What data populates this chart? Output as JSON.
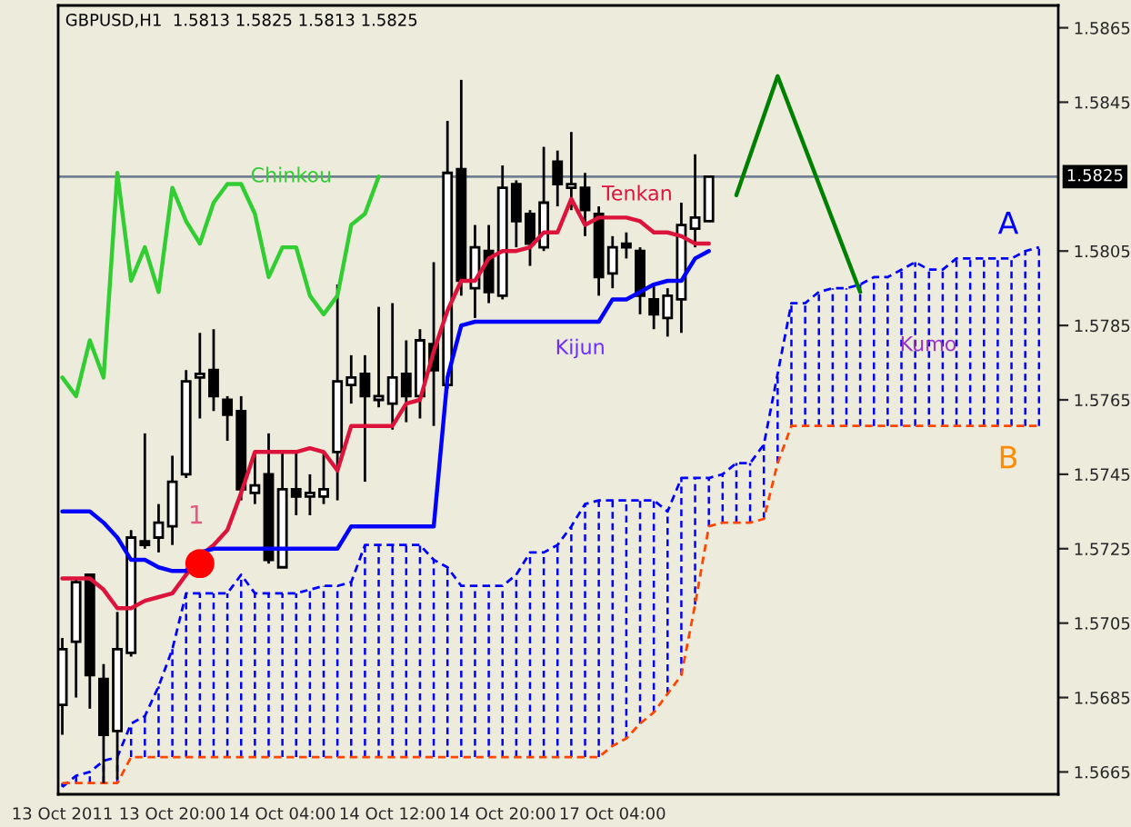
{
  "chart_data": {
    "type": "candlestick",
    "title": "GBPUSD,H1  1.5813 1.5825 1.5813 1.5825",
    "categories": [
      "13 Oct 2011",
      null,
      null,
      null,
      null,
      null,
      null,
      null,
      "13 Oct 20:00",
      null,
      null,
      null,
      null,
      null,
      null,
      null,
      "14 Oct 04:00",
      null,
      null,
      null,
      null,
      null,
      null,
      null,
      "14 Oct 12:00",
      null,
      null,
      null,
      null,
      null,
      null,
      null,
      "14 Oct 20:00",
      null,
      null,
      null,
      null,
      null,
      null,
      null,
      "17 Oct 04:00",
      null,
      null,
      null,
      null,
      null,
      null,
      null,
      null,
      null,
      null,
      null,
      null,
      null,
      null,
      null,
      null,
      null,
      null,
      null,
      null,
      null,
      null,
      null,
      null,
      null,
      null,
      null,
      null,
      null,
      null,
      null
    ],
    "ohlc": [
      [
        1.5683,
        1.5701,
        1.5675,
        1.5698
      ],
      [
        1.57,
        1.5717,
        1.5685,
        1.5716
      ],
      [
        1.5718,
        1.5718,
        1.5682,
        1.5691
      ],
      [
        1.569,
        1.5694,
        1.5662,
        1.5675
      ],
      [
        1.5676,
        1.5708,
        1.5663,
        1.5698
      ],
      [
        1.5697,
        1.573,
        1.5696,
        1.5728
      ],
      [
        1.5727,
        1.5756,
        1.5725,
        1.5726
      ],
      [
        1.5728,
        1.5737,
        1.5724,
        1.5732
      ],
      [
        1.5731,
        1.575,
        1.5726,
        1.5743
      ],
      [
        1.5745,
        1.5773,
        1.5744,
        1.577
      ],
      [
        1.5771,
        1.5783,
        1.576,
        1.5772
      ],
      [
        1.5773,
        1.5784,
        1.5762,
        1.5766
      ],
      [
        1.5765,
        1.5766,
        1.5754,
        1.5761
      ],
      [
        1.5762,
        1.5766,
        1.5738,
        1.5741
      ],
      [
        1.574,
        1.5751,
        1.5737,
        1.5742
      ],
      [
        1.5745,
        1.5756,
        1.5721,
        1.5722
      ],
      [
        1.572,
        1.5751,
        1.572,
        1.5741
      ],
      [
        1.5741,
        1.5751,
        1.5734,
        1.5739
      ],
      [
        1.5739,
        1.5745,
        1.5734,
        1.574
      ],
      [
        1.5739,
        1.5751,
        1.5737,
        1.5741
      ],
      [
        1.5751,
        1.5796,
        1.5738,
        1.577
      ],
      [
        1.5769,
        1.5777,
        1.5764,
        1.5771
      ],
      [
        1.5772,
        1.5777,
        1.5743,
        1.5766
      ],
      [
        1.5765,
        1.579,
        1.5763,
        1.5766
      ],
      [
        1.5764,
        1.5791,
        1.5757,
        1.5771
      ],
      [
        1.5772,
        1.5781,
        1.5759,
        1.5766
      ],
      [
        1.5766,
        1.5784,
        1.576,
        1.5781
      ],
      [
        1.578,
        1.5802,
        1.5758,
        1.5773
      ],
      [
        1.5769,
        1.584,
        1.5768,
        1.5826
      ],
      [
        1.5827,
        1.5851,
        1.5793,
        1.5797
      ],
      [
        1.5795,
        1.5812,
        1.5787,
        1.5806
      ],
      [
        1.5805,
        1.5812,
        1.5791,
        1.5794
      ],
      [
        1.5793,
        1.5828,
        1.5792,
        1.5822
      ],
      [
        1.5823,
        1.5824,
        1.5806,
        1.5813
      ],
      [
        1.5815,
        1.5816,
        1.5801,
        1.5807
      ],
      [
        1.5806,
        1.5833,
        1.5805,
        1.5818
      ],
      [
        1.5829,
        1.5832,
        1.5817,
        1.5823
      ],
      [
        1.5822,
        1.5837,
        1.5816,
        1.5823
      ],
      [
        1.5822,
        1.5826,
        1.5809,
        1.5816
      ],
      [
        1.5815,
        1.5817,
        1.5793,
        1.5798
      ],
      [
        1.5799,
        1.5809,
        1.5795,
        1.5806
      ],
      [
        1.5807,
        1.581,
        1.5803,
        1.5806
      ],
      [
        1.5805,
        1.5806,
        1.5788,
        1.5793
      ],
      [
        1.5792,
        1.5796,
        1.5784,
        1.5788
      ],
      [
        1.5787,
        1.5795,
        1.5782,
        1.5793
      ],
      [
        1.5792,
        1.5818,
        1.5783,
        1.5812
      ],
      [
        1.5811,
        1.5831,
        1.5806,
        1.5814
      ],
      [
        1.5813,
        1.5825,
        1.5813,
        1.5825
      ],
      null,
      null,
      null,
      null,
      null,
      null,
      null,
      null,
      null,
      null,
      null,
      null,
      null,
      null,
      null,
      null,
      null,
      null,
      null,
      null,
      null,
      null,
      null,
      null
    ],
    "series": [
      {
        "name": "Chinkou",
        "type": "line",
        "color": "#32cd32",
        "values": [
          1.5771,
          1.5766,
          1.5781,
          1.5771,
          1.5826,
          1.5797,
          1.5806,
          1.5794,
          1.5822,
          1.5813,
          1.5807,
          1.5818,
          1.5823,
          1.5823,
          1.5815,
          1.5798,
          1.5806,
          1.5806,
          1.5793,
          1.5788,
          1.5793,
          1.5812,
          1.5815,
          1.5825,
          null,
          null,
          null,
          null,
          null,
          null,
          null,
          null,
          null,
          null,
          null,
          null,
          null,
          null,
          null,
          null,
          null,
          null,
          null,
          null,
          null,
          null,
          null,
          null,
          null,
          null,
          null,
          null,
          null,
          null,
          null,
          null,
          null,
          null,
          null,
          null,
          null,
          null,
          null,
          null,
          null,
          null,
          null,
          null,
          null,
          null,
          null,
          null
        ]
      },
      {
        "name": "Tenkan",
        "type": "line",
        "color": "#dc143c",
        "values": [
          1.5717,
          1.5717,
          1.5717,
          1.5714,
          1.5709,
          1.5709,
          1.5711,
          1.5712,
          1.5713,
          1.5718,
          1.5723,
          1.5726,
          1.573,
          1.574,
          1.5751,
          1.5751,
          1.5751,
          1.5751,
          1.5752,
          1.5751,
          1.5746,
          1.5758,
          1.5758,
          1.5758,
          1.5758,
          1.5764,
          1.5765,
          1.5778,
          1.5789,
          1.5797,
          1.5797,
          1.5803,
          1.5805,
          1.5805,
          1.5806,
          1.581,
          1.581,
          1.5819,
          1.5812,
          1.5814,
          1.5814,
          1.5814,
          1.5813,
          1.581,
          1.581,
          1.5809,
          1.5807,
          1.5807,
          null,
          null,
          null,
          null,
          null,
          null,
          null,
          null,
          null,
          null,
          null,
          null,
          null,
          null,
          null,
          null,
          null,
          null,
          null,
          null,
          null,
          null,
          null,
          null
        ]
      },
      {
        "name": "Kijun",
        "type": "line",
        "color": "#0000ff",
        "values": [
          1.5735,
          1.5735,
          1.5735,
          1.5732,
          1.5728,
          1.5722,
          1.5722,
          1.572,
          1.5719,
          1.5719,
          1.5724,
          1.5725,
          1.5725,
          1.5725,
          1.5725,
          1.5725,
          1.5725,
          1.5725,
          1.5725,
          1.5725,
          1.5725,
          1.5731,
          1.5731,
          1.5731,
          1.5731,
          1.5731,
          1.5731,
          1.5731,
          1.5771,
          1.5785,
          1.5786,
          1.5786,
          1.5786,
          1.5786,
          1.5786,
          1.5786,
          1.5786,
          1.5786,
          1.5786,
          1.5786,
          1.5792,
          1.5792,
          1.5794,
          1.5796,
          1.5797,
          1.5797,
          1.5803,
          1.5805,
          null,
          null,
          null,
          null,
          null,
          null,
          null,
          null,
          null,
          null,
          null,
          null,
          null,
          null,
          null,
          null,
          null,
          null,
          null,
          null,
          null,
          null,
          null,
          null
        ]
      },
      {
        "name": "A",
        "type": "line",
        "line_style": "dashed",
        "color": "#0000ff",
        "values": [
          1.5661,
          1.5664,
          1.5665,
          1.5668,
          1.5669,
          1.5678,
          1.568,
          1.5688,
          1.5698,
          1.5713,
          1.5713,
          1.5713,
          1.5713,
          1.5718,
          1.5713,
          1.5713,
          1.5713,
          1.5713,
          1.5714,
          1.5715,
          1.5715,
          1.5716,
          1.5726,
          1.5726,
          1.5726,
          1.5726,
          1.5726,
          1.5722,
          1.572,
          1.5715,
          1.5715,
          1.5715,
          1.5715,
          1.5718,
          1.5724,
          1.5724,
          1.5726,
          1.5731,
          1.5737,
          1.5738,
          1.5738,
          1.5738,
          1.5738,
          1.5738,
          1.5735,
          1.5744,
          1.5744,
          1.5744,
          1.5745,
          1.5748,
          1.5748,
          1.5753,
          1.5772,
          1.5791,
          1.5791,
          1.5794,
          1.5795,
          1.5795,
          1.5796,
          1.5798,
          1.5798,
          1.58,
          1.5802,
          1.58,
          1.58,
          1.5803,
          1.5803,
          1.5803,
          1.5803,
          1.5803,
          1.5805,
          1.5806
        ]
      },
      {
        "name": "B",
        "type": "line",
        "line_style": "dashed",
        "color": "#ff4500",
        "values": [
          1.5662,
          1.5662,
          1.5662,
          1.5662,
          1.5662,
          1.5669,
          1.5669,
          1.5669,
          1.5669,
          1.5669,
          1.5669,
          1.5669,
          1.5669,
          1.5669,
          1.5669,
          1.5669,
          1.5669,
          1.5669,
          1.5669,
          1.5669,
          1.5669,
          1.5669,
          1.5669,
          1.5669,
          1.5669,
          1.5669,
          1.5669,
          1.5669,
          1.5669,
          1.5669,
          1.5669,
          1.5669,
          1.5669,
          1.5669,
          1.5669,
          1.5669,
          1.5669,
          1.5669,
          1.5669,
          1.5669,
          1.5672,
          1.5674,
          1.5678,
          1.5681,
          1.5686,
          1.5691,
          1.571,
          1.5731,
          1.5732,
          1.5732,
          1.5732,
          1.5733,
          1.5748,
          1.5758,
          1.5758,
          1.5758,
          1.5758,
          1.5758,
          1.5758,
          1.5758,
          1.5758,
          1.5758,
          1.5758,
          1.5758,
          1.5758,
          1.5758,
          1.5758,
          1.5758,
          1.5758,
          1.5758,
          1.5758,
          1.5758
        ]
      },
      {
        "type": "line",
        "color": "#008000",
        "values": [
          null,
          null,
          null,
          null,
          null,
          null,
          null,
          null,
          null,
          null,
          null,
          null,
          null,
          null,
          null,
          null,
          null,
          null,
          null,
          null,
          null,
          null,
          null,
          null,
          null,
          null,
          null,
          null,
          null,
          null,
          null,
          null,
          null,
          null,
          null,
          null,
          null,
          null,
          null,
          null,
          null,
          null,
          null,
          null,
          null,
          null,
          null,
          null,
          null,
          1.582,
          null,
          null,
          1.5852,
          null,
          null,
          null,
          null,
          null,
          1.5794,
          null,
          null,
          null,
          null,
          null,
          null,
          null,
          null,
          null,
          null,
          null,
          null,
          null
        ]
      },
      {
        "type": "scatter",
        "color": "#ff0000",
        "marker": "circle",
        "values": [
          null,
          null,
          null,
          null,
          null,
          null,
          null,
          null,
          null,
          null,
          1.5721,
          null,
          null,
          null,
          null,
          null,
          null,
          null,
          null,
          null,
          null,
          null,
          null,
          null,
          null,
          null,
          null,
          null,
          null,
          null,
          null,
          null,
          null,
          null,
          null,
          null,
          null,
          null,
          null,
          null,
          null,
          null,
          null,
          null,
          null,
          null,
          null,
          null,
          null,
          null,
          null,
          null,
          null,
          null,
          null,
          null,
          null,
          null,
          null,
          null,
          null,
          null,
          null,
          null,
          null,
          null,
          null,
          null,
          null,
          null,
          null,
          null
        ]
      }
    ],
    "annotations": [
      "Kumo",
      "1"
    ],
    "ref_lines": [
      {
        "axis": "y",
        "value": 1.5825,
        "label": "1.5825",
        "color": "#708090"
      }
    ],
    "ylim": [
      1.5659,
      1.5871
    ],
    "yticks": [
      1.5665,
      1.5685,
      1.5705,
      1.5725,
      1.5745,
      1.5765,
      1.5785,
      1.5805,
      1.5845,
      1.5865
    ],
    "grid": false,
    "legend": false
  }
}
